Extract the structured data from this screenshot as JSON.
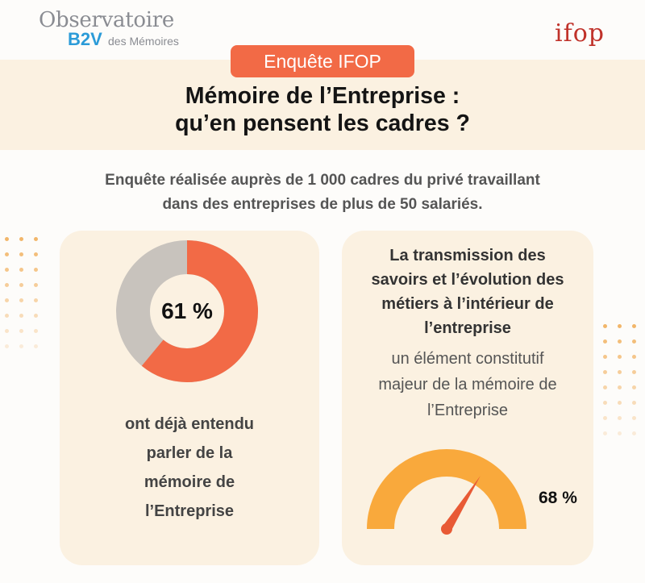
{
  "header": {
    "logo_left_line1": "Observatoire",
    "logo_left_b2v": "B2V",
    "logo_left_line2": "des Mémoires",
    "logo_right": "ifop"
  },
  "banner": {
    "tag": "Enquête IFOP",
    "title_line1": "Mémoire de l’Entreprise :",
    "title_line2": "qu’en pensent les cadres ?"
  },
  "intro": {
    "line1": "Enquête réalisée auprès de 1 000 cadres du privé travaillant",
    "line2": "dans des entreprises de plus de 50 salariés."
  },
  "left_card": {
    "value": 61,
    "value_label": "61 %",
    "text_lines": [
      "ont déjà entendu",
      "parler de la",
      "mémoire de",
      "l’Entreprise"
    ]
  },
  "right_card": {
    "bold_lines": [
      "La transmission des",
      "savoirs et l’évolution des",
      "métiers à l’intérieur de",
      "l’entreprise"
    ],
    "plain_lines": [
      "un élément constitutif",
      "majeur de la mémoire de",
      "l’Entreprise"
    ],
    "value": 68,
    "value_label": "68 %"
  },
  "colors": {
    "accent": "#f26a46",
    "donut_rest": "#c8c3bd",
    "gauge": "#f9a93c",
    "needle": "#e85a35",
    "card_bg": "#fbf1e1",
    "dot_color": "#f2b66a"
  }
}
